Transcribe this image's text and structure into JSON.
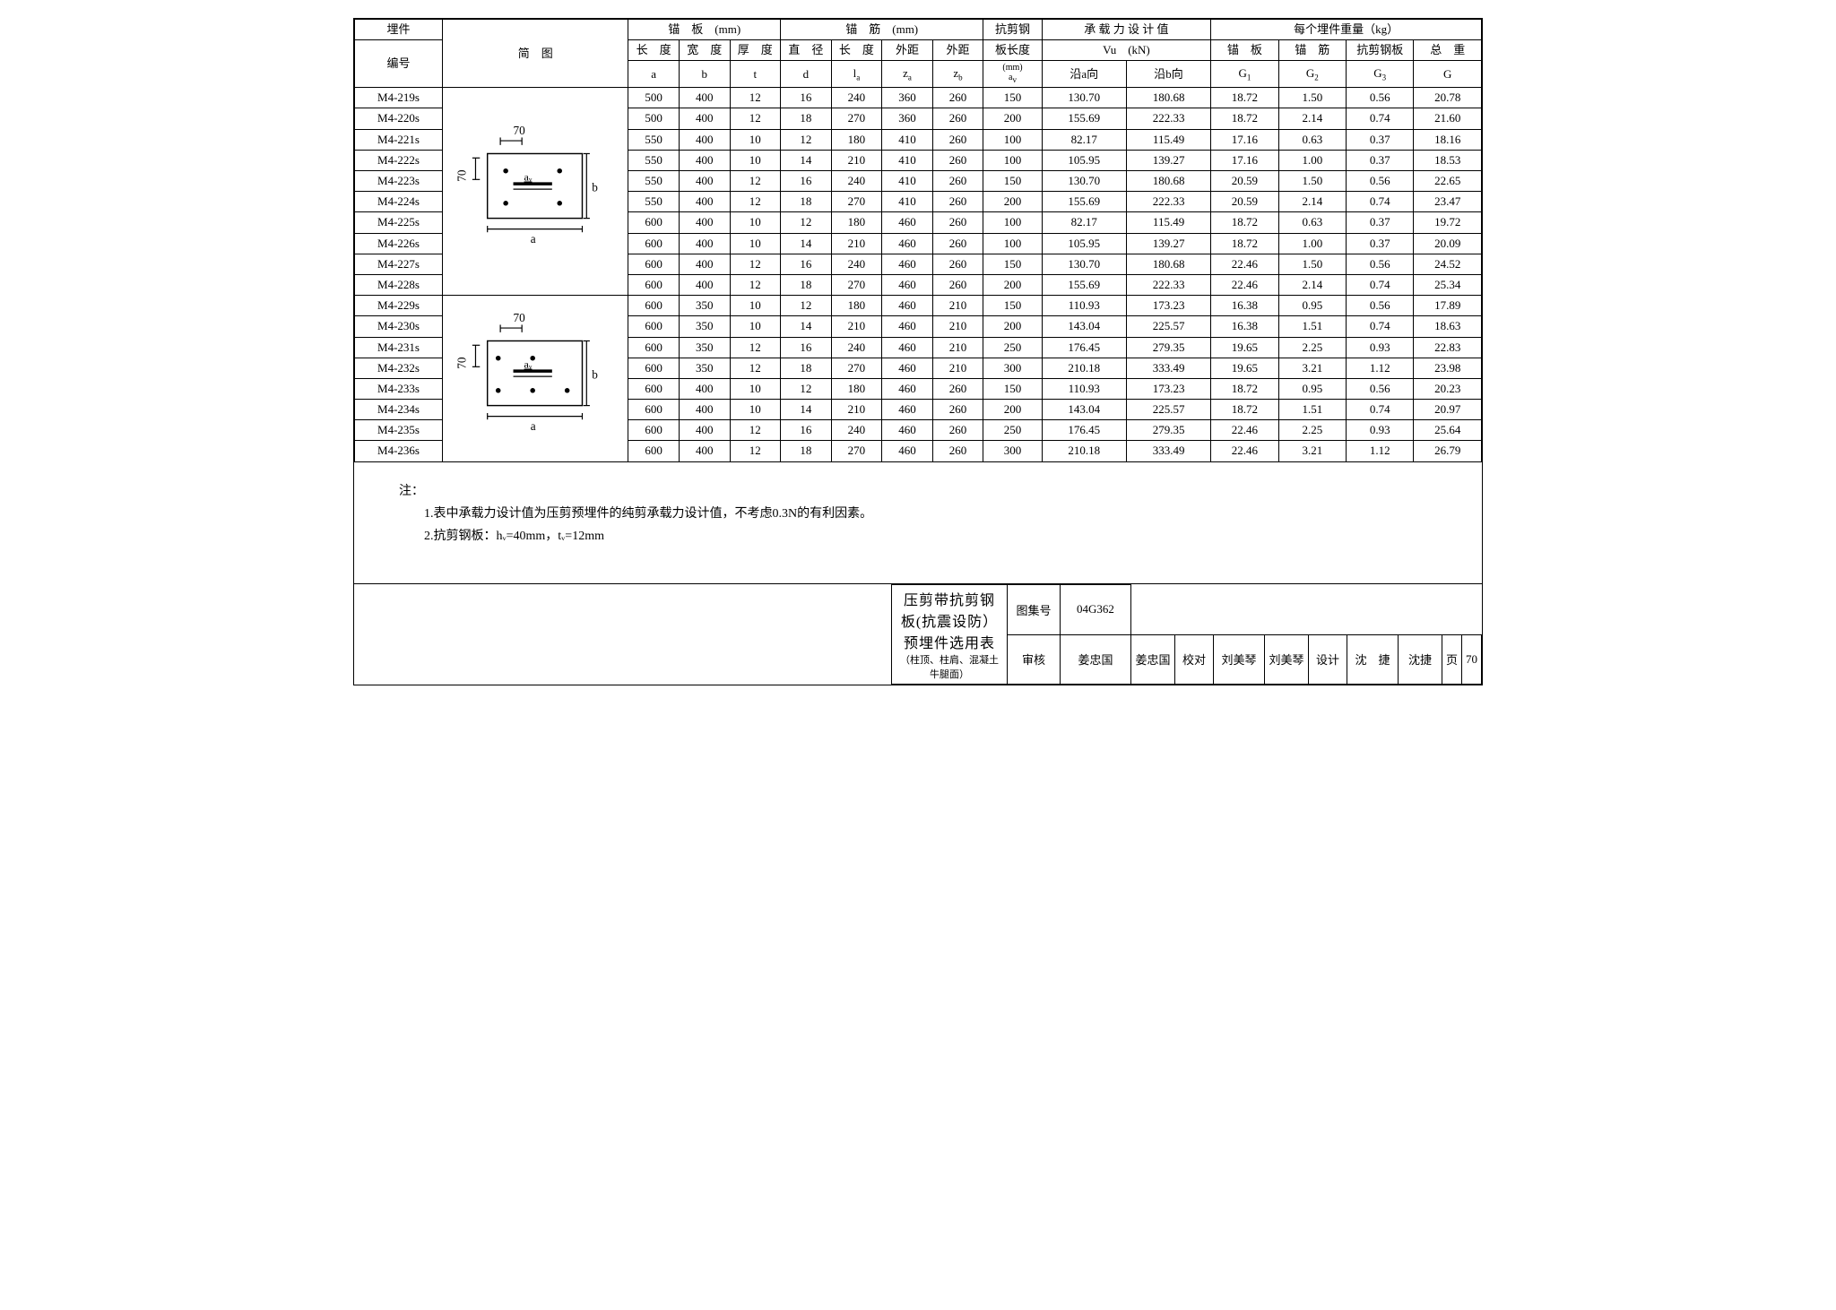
{
  "header": {
    "col_id": "埋件",
    "col_diag": "简　图",
    "col_id_sub": "编号",
    "anchor_plate": "锚　板　(mm)",
    "anchor_plate_a": "长　度",
    "anchor_plate_a_sym": "a",
    "anchor_plate_b": "宽　度",
    "anchor_plate_b_sym": "b",
    "anchor_plate_t": "厚　度",
    "anchor_plate_t_sym": "t",
    "anchor_bar": "锚　筋　(mm)",
    "anchor_bar_d": "直　径",
    "anchor_bar_d_sym": "d",
    "anchor_bar_la": "长　度",
    "anchor_bar_la_sym": "lₐ",
    "anchor_bar_za": "外距",
    "anchor_bar_za_sym": "zₐ",
    "anchor_bar_zb": "外距",
    "anchor_bar_zb_sym": "z_b",
    "shear": "抗剪钢",
    "shear_sub": "板长度",
    "shear_sym": "(mm) aᵥ",
    "capacity": "承 载 力 设 计 值",
    "capacity_vu": "Vu　(kN)",
    "capacity_a": "沿a向",
    "capacity_b": "沿b向",
    "weight": "每个埋件重量（kg）",
    "weight_g1": "锚　板",
    "weight_g1_sym": "G₁",
    "weight_g2": "锚　筋",
    "weight_g2_sym": "G₂",
    "weight_g3": "抗剪钢板",
    "weight_g3_sym": "G₃",
    "weight_g": "总　重",
    "weight_g_sym": "G"
  },
  "rows": [
    {
      "id": "M4-219s",
      "a": 500,
      "b": 400,
      "t": 12,
      "d": 16,
      "la": 240,
      "za": 360,
      "zb": 260,
      "av": 150,
      "vua": "130.70",
      "vub": "180.68",
      "g1": "18.72",
      "g2": "1.50",
      "g3": "0.56",
      "g": "20.78"
    },
    {
      "id": "M4-220s",
      "a": 500,
      "b": 400,
      "t": 12,
      "d": 18,
      "la": 270,
      "za": 360,
      "zb": 260,
      "av": 200,
      "vua": "155.69",
      "vub": "222.33",
      "g1": "18.72",
      "g2": "2.14",
      "g3": "0.74",
      "g": "21.60"
    },
    {
      "id": "M4-221s",
      "a": 550,
      "b": 400,
      "t": 10,
      "d": 12,
      "la": 180,
      "za": 410,
      "zb": 260,
      "av": 100,
      "vua": "82.17",
      "vub": "115.49",
      "g1": "17.16",
      "g2": "0.63",
      "g3": "0.37",
      "g": "18.16"
    },
    {
      "id": "M4-222s",
      "a": 550,
      "b": 400,
      "t": 10,
      "d": 14,
      "la": 210,
      "za": 410,
      "zb": 260,
      "av": 100,
      "vua": "105.95",
      "vub": "139.27",
      "g1": "17.16",
      "g2": "1.00",
      "g3": "0.37",
      "g": "18.53"
    },
    {
      "id": "M4-223s",
      "a": 550,
      "b": 400,
      "t": 12,
      "d": 16,
      "la": 240,
      "za": 410,
      "zb": 260,
      "av": 150,
      "vua": "130.70",
      "vub": "180.68",
      "g1": "20.59",
      "g2": "1.50",
      "g3": "0.56",
      "g": "22.65"
    },
    {
      "id": "M4-224s",
      "a": 550,
      "b": 400,
      "t": 12,
      "d": 18,
      "la": 270,
      "za": 410,
      "zb": 260,
      "av": 200,
      "vua": "155.69",
      "vub": "222.33",
      "g1": "20.59",
      "g2": "2.14",
      "g3": "0.74",
      "g": "23.47"
    },
    {
      "id": "M4-225s",
      "a": 600,
      "b": 400,
      "t": 10,
      "d": 12,
      "la": 180,
      "za": 460,
      "zb": 260,
      "av": 100,
      "vua": "82.17",
      "vub": "115.49",
      "g1": "18.72",
      "g2": "0.63",
      "g3": "0.37",
      "g": "19.72"
    },
    {
      "id": "M4-226s",
      "a": 600,
      "b": 400,
      "t": 10,
      "d": 14,
      "la": 210,
      "za": 460,
      "zb": 260,
      "av": 100,
      "vua": "105.95",
      "vub": "139.27",
      "g1": "18.72",
      "g2": "1.00",
      "g3": "0.37",
      "g": "20.09"
    },
    {
      "id": "M4-227s",
      "a": 600,
      "b": 400,
      "t": 12,
      "d": 16,
      "la": 240,
      "za": 460,
      "zb": 260,
      "av": 150,
      "vua": "130.70",
      "vub": "180.68",
      "g1": "22.46",
      "g2": "1.50",
      "g3": "0.56",
      "g": "24.52"
    },
    {
      "id": "M4-228s",
      "a": 600,
      "b": 400,
      "t": 12,
      "d": 18,
      "la": 270,
      "za": 460,
      "zb": 260,
      "av": 200,
      "vua": "155.69",
      "vub": "222.33",
      "g1": "22.46",
      "g2": "2.14",
      "g3": "0.74",
      "g": "25.34"
    },
    {
      "id": "M4-229s",
      "a": 600,
      "b": 350,
      "t": 10,
      "d": 12,
      "la": 180,
      "za": 460,
      "zb": 210,
      "av": 150,
      "vua": "110.93",
      "vub": "173.23",
      "g1": "16.38",
      "g2": "0.95",
      "g3": "0.56",
      "g": "17.89"
    },
    {
      "id": "M4-230s",
      "a": 600,
      "b": 350,
      "t": 10,
      "d": 14,
      "la": 210,
      "za": 460,
      "zb": 210,
      "av": 200,
      "vua": "143.04",
      "vub": "225.57",
      "g1": "16.38",
      "g2": "1.51",
      "g3": "0.74",
      "g": "18.63"
    },
    {
      "id": "M4-231s",
      "a": 600,
      "b": 350,
      "t": 12,
      "d": 16,
      "la": 240,
      "za": 460,
      "zb": 210,
      "av": 250,
      "vua": "176.45",
      "vub": "279.35",
      "g1": "19.65",
      "g2": "2.25",
      "g3": "0.93",
      "g": "22.83"
    },
    {
      "id": "M4-232s",
      "a": 600,
      "b": 350,
      "t": 12,
      "d": 18,
      "la": 270,
      "za": 460,
      "zb": 210,
      "av": 300,
      "vua": "210.18",
      "vub": "333.49",
      "g1": "19.65",
      "g2": "3.21",
      "g3": "1.12",
      "g": "23.98"
    },
    {
      "id": "M4-233s",
      "a": 600,
      "b": 400,
      "t": 10,
      "d": 12,
      "la": 180,
      "za": 460,
      "zb": 260,
      "av": 150,
      "vua": "110.93",
      "vub": "173.23",
      "g1": "18.72",
      "g2": "0.95",
      "g3": "0.56",
      "g": "20.23"
    },
    {
      "id": "M4-234s",
      "a": 600,
      "b": 400,
      "t": 10,
      "d": 14,
      "la": 210,
      "za": 460,
      "zb": 260,
      "av": 200,
      "vua": "143.04",
      "vub": "225.57",
      "g1": "18.72",
      "g2": "1.51",
      "g3": "0.74",
      "g": "20.97"
    },
    {
      "id": "M4-235s",
      "a": 600,
      "b": 400,
      "t": 12,
      "d": 16,
      "la": 240,
      "za": 460,
      "zb": 260,
      "av": 250,
      "vua": "176.45",
      "vub": "279.35",
      "g1": "22.46",
      "g2": "2.25",
      "g3": "0.93",
      "g": "25.64"
    },
    {
      "id": "M4-236s",
      "a": 600,
      "b": 400,
      "t": 12,
      "d": 18,
      "la": 270,
      "za": 460,
      "zb": 260,
      "av": 300,
      "vua": "210.18",
      "vub": "333.49",
      "g1": "22.46",
      "g2": "3.21",
      "g3": "1.12",
      "g": "26.79"
    }
  ],
  "diagram": {
    "top_dim": "70",
    "left_dim": "70",
    "av_label": "aᵥ",
    "b_label": "b",
    "a_label": "a",
    "dots_row1": 2,
    "dots_row2": 3
  },
  "notes": {
    "title": "注：",
    "n1": "1.表中承载力设计值为压剪预埋件的纯剪承载力设计值，不考虑0.3N的有利因素。",
    "n2": "2.抗剪钢板：hᵥ=40mm，tᵥ=12mm"
  },
  "titleblock": {
    "title": "压剪带抗剪钢板(抗震设防）预埋件选用表",
    "subtitle": "（柱顶、柱肩、混凝土牛腿面）",
    "tuji_label": "图集号",
    "tuji": "04G362",
    "shenhe_label": "审核",
    "shenhe": "姜忠国",
    "jiaodui_label": "校对",
    "jiaodui": "刘美琴",
    "sheji_label": "设计",
    "sheji": "沈　捷",
    "page_label": "页",
    "page": "70"
  },
  "colors": {
    "border": "#000000",
    "text": "#000000",
    "bg": "#ffffff"
  }
}
